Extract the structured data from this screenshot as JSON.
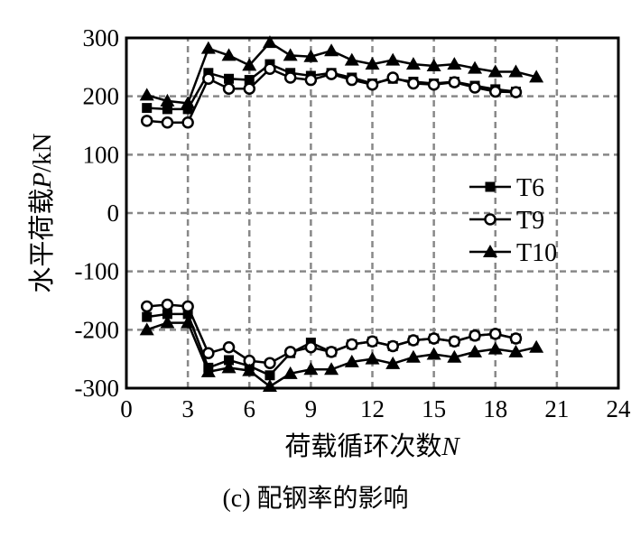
{
  "chart_data": {
    "type": "line",
    "title": "",
    "xlabel": "荷载循环次数",
    "xlabel_var": "N",
    "ylabel": "水平荷载",
    "ylabel_var": "P",
    "ylabel_unit": "/kN",
    "xlim": [
      0,
      24
    ],
    "ylim": [
      -300,
      300
    ],
    "xticks": [
      0,
      3,
      6,
      9,
      12,
      15,
      18,
      21,
      24
    ],
    "yticks": [
      300,
      200,
      100,
      0,
      -100,
      -200,
      -300
    ],
    "grid": true,
    "legend_position": "center-right",
    "series": [
      {
        "name": "T6",
        "marker": "square-filled",
        "positive": [
          180,
          178,
          178,
          240,
          230,
          228,
          255,
          240,
          235,
          240,
          232,
          222,
          230,
          225,
          222,
          225,
          218,
          212,
          208
        ],
        "negative": [
          -178,
          -173,
          -173,
          -265,
          -252,
          -262,
          -278,
          -240,
          -222,
          -238,
          -225,
          -220,
          -228,
          -218,
          -215,
          -220,
          -210,
          -207,
          -215
        ]
      },
      {
        "name": "T9",
        "marker": "circle-open",
        "positive": [
          158,
          155,
          155,
          230,
          213,
          213,
          247,
          232,
          228,
          238,
          228,
          220,
          232,
          222,
          220,
          224,
          215,
          208,
          207
        ],
        "negative": [
          -160,
          -157,
          -160,
          -240,
          -230,
          -253,
          -257,
          -238,
          -230,
          -238,
          -225,
          -220,
          -228,
          -218,
          -215,
          -220,
          -210,
          -207,
          -215
        ]
      },
      {
        "name": "T10",
        "marker": "triangle-filled",
        "positive": [
          202,
          192,
          188,
          282,
          270,
          253,
          292,
          270,
          268,
          278,
          262,
          255,
          262,
          255,
          252,
          255,
          248,
          242,
          242,
          233
        ],
        "negative": [
          -200,
          -188,
          -188,
          -272,
          -265,
          -270,
          -297,
          -275,
          -268,
          -268,
          -255,
          -250,
          -258,
          -247,
          -242,
          -247,
          -238,
          -233,
          -238,
          -230
        ]
      }
    ]
  },
  "caption": "(c) 配钢率的影响"
}
